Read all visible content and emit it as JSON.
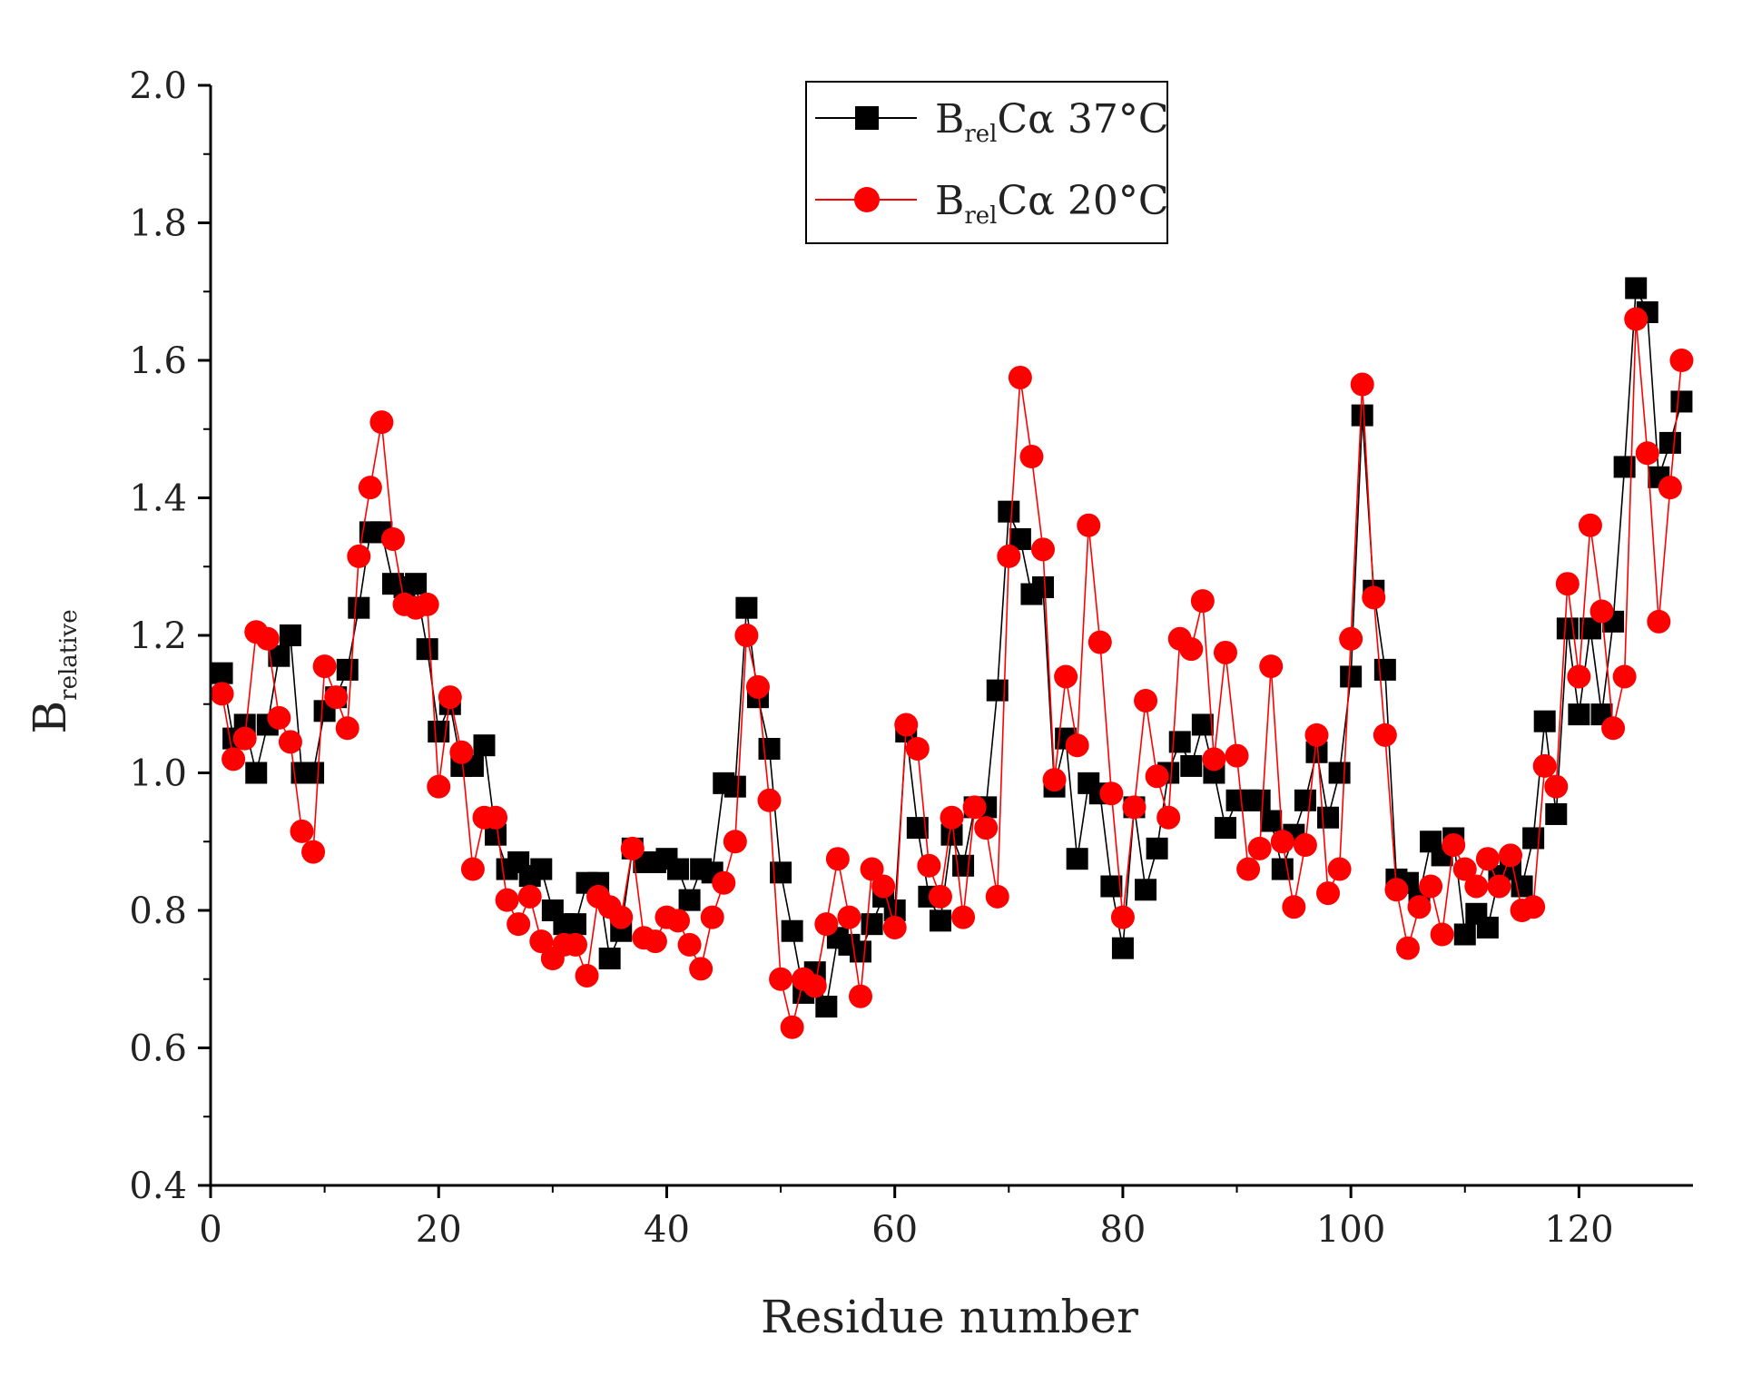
{
  "chart_data": {
    "type": "line",
    "xlabel": "Residue number",
    "ylabel": {
      "main": "B",
      "sub": "relative"
    },
    "xlim": [
      0,
      130
    ],
    "ylim": [
      0.4,
      2.0
    ],
    "xticks": [
      0,
      20,
      40,
      60,
      80,
      100,
      120
    ],
    "yticks": [
      0.4,
      0.6,
      0.8,
      1.0,
      1.2,
      1.4,
      1.6,
      1.8,
      2.0
    ],
    "xtick_labels": [
      "0",
      "20",
      "40",
      "60",
      "80",
      "100",
      "120"
    ],
    "ytick_labels": [
      "0.4",
      "0.6",
      "0.8",
      "1.0",
      "1.2",
      "1.4",
      "1.6",
      "1.8",
      "2.0"
    ],
    "legend_position": "top-center",
    "series": [
      {
        "name": "B_rel Cα 37°C",
        "label_main": "B",
        "label_sub": "rel",
        "label_rest": "Cα 37°C",
        "color": "#000000",
        "marker": "square",
        "x": [
          1,
          2,
          3,
          4,
          5,
          6,
          7,
          8,
          9,
          10,
          11,
          12,
          13,
          14,
          15,
          16,
          17,
          18,
          19,
          20,
          21,
          22,
          23,
          24,
          25,
          26,
          27,
          28,
          29,
          30,
          31,
          32,
          33,
          34,
          35,
          36,
          37,
          38,
          39,
          40,
          41,
          42,
          43,
          44,
          45,
          46,
          47,
          48,
          49,
          50,
          51,
          52,
          53,
          54,
          55,
          56,
          57,
          58,
          59,
          60,
          61,
          62,
          63,
          64,
          65,
          66,
          67,
          68,
          69,
          70,
          71,
          72,
          73,
          74,
          75,
          76,
          77,
          78,
          79,
          80,
          81,
          82,
          83,
          84,
          85,
          86,
          87,
          88,
          89,
          90,
          91,
          92,
          93,
          94,
          95,
          96,
          97,
          98,
          99,
          100,
          101,
          102,
          103,
          104,
          105,
          106,
          107,
          108,
          109,
          110,
          111,
          112,
          113,
          114,
          115,
          116,
          117,
          118,
          119,
          120,
          121,
          122,
          123,
          124,
          125,
          126,
          127,
          128,
          129
        ],
        "y": [
          1.145,
          1.05,
          1.07,
          1.0,
          1.07,
          1.17,
          1.2,
          1.0,
          1.0,
          1.09,
          1.11,
          1.15,
          1.24,
          1.35,
          1.35,
          1.275,
          1.27,
          1.275,
          1.18,
          1.06,
          1.1,
          1.01,
          1.01,
          1.04,
          0.91,
          0.86,
          0.87,
          0.85,
          0.86,
          0.8,
          0.78,
          0.78,
          0.84,
          0.84,
          0.73,
          0.77,
          0.89,
          0.87,
          0.87,
          0.875,
          0.86,
          0.815,
          0.86,
          0.855,
          0.985,
          0.98,
          1.24,
          1.11,
          1.035,
          0.855,
          0.77,
          0.68,
          0.71,
          0.66,
          0.76,
          0.75,
          0.74,
          0.78,
          0.82,
          0.8,
          1.06,
          0.92,
          0.82,
          0.785,
          0.91,
          0.865,
          0.95,
          0.95,
          1.12,
          1.38,
          1.34,
          1.26,
          1.27,
          0.98,
          1.05,
          0.875,
          0.985,
          0.97,
          0.835,
          0.745,
          0.95,
          0.83,
          0.89,
          1.0,
          1.045,
          1.01,
          1.07,
          1.0,
          0.92,
          0.96,
          0.96,
          0.96,
          0.93,
          0.86,
          0.91,
          0.96,
          1.03,
          0.935,
          1.0,
          1.14,
          1.52,
          1.265,
          1.15,
          0.845,
          0.84,
          0.82,
          0.9,
          0.88,
          0.905,
          0.765,
          0.795,
          0.775,
          0.85,
          0.86,
          0.835,
          0.905,
          1.075,
          0.94,
          1.21,
          1.085,
          1.21,
          1.085,
          1.22,
          1.445,
          1.705,
          1.67,
          1.43,
          1.48,
          1.54
        ]
      },
      {
        "name": "B_rel Cα 20°C",
        "label_main": "B",
        "label_sub": "rel",
        "label_rest": "Cα 20°C",
        "color": "#ff0000",
        "marker": "circle",
        "x": [
          1,
          2,
          3,
          4,
          5,
          6,
          7,
          8,
          9,
          10,
          11,
          12,
          13,
          14,
          15,
          16,
          17,
          18,
          19,
          20,
          21,
          22,
          23,
          24,
          25,
          26,
          27,
          28,
          29,
          30,
          31,
          32,
          33,
          34,
          35,
          36,
          37,
          38,
          39,
          40,
          41,
          42,
          43,
          44,
          45,
          46,
          47,
          48,
          49,
          50,
          51,
          52,
          53,
          54,
          55,
          56,
          57,
          58,
          59,
          60,
          61,
          62,
          63,
          64,
          65,
          66,
          67,
          68,
          69,
          70,
          71,
          72,
          73,
          74,
          75,
          76,
          77,
          78,
          79,
          80,
          81,
          82,
          83,
          84,
          85,
          86,
          87,
          88,
          89,
          90,
          91,
          92,
          93,
          94,
          95,
          96,
          97,
          98,
          99,
          100,
          101,
          102,
          103,
          104,
          105,
          106,
          107,
          108,
          109,
          110,
          111,
          112,
          113,
          114,
          115,
          116,
          117,
          118,
          119,
          120,
          121,
          122,
          123,
          124,
          125,
          126,
          127,
          128,
          129
        ],
        "y": [
          1.115,
          1.02,
          1.05,
          1.205,
          1.195,
          1.08,
          1.045,
          0.915,
          0.885,
          1.155,
          1.11,
          1.065,
          1.315,
          1.415,
          1.51,
          1.34,
          1.245,
          1.24,
          1.245,
          0.98,
          1.11,
          1.03,
          0.86,
          0.935,
          0.935,
          0.815,
          0.78,
          0.82,
          0.755,
          0.73,
          0.75,
          0.75,
          0.705,
          0.82,
          0.805,
          0.79,
          0.89,
          0.76,
          0.755,
          0.79,
          0.785,
          0.75,
          0.715,
          0.79,
          0.84,
          0.9,
          1.2,
          1.125,
          0.96,
          0.7,
          0.63,
          0.7,
          0.69,
          0.78,
          0.875,
          0.79,
          0.675,
          0.86,
          0.835,
          0.775,
          1.07,
          1.035,
          0.865,
          0.82,
          0.935,
          0.79,
          0.95,
          0.92,
          0.82,
          1.315,
          1.575,
          1.46,
          1.325,
          0.99,
          1.14,
          1.04,
          1.36,
          1.19,
          0.97,
          0.79,
          0.95,
          1.105,
          0.995,
          0.935,
          1.195,
          1.18,
          1.25,
          1.02,
          1.175,
          1.025,
          0.86,
          0.89,
          1.155,
          0.9,
          0.805,
          0.895,
          1.055,
          0.825,
          0.86,
          1.195,
          1.565,
          1.255,
          1.055,
          0.83,
          0.745,
          0.805,
          0.835,
          0.765,
          0.895,
          0.86,
          0.835,
          0.875,
          0.835,
          0.88,
          0.8,
          0.805,
          1.01,
          0.98,
          1.275,
          1.14,
          1.36,
          1.235,
          1.065,
          1.14,
          1.66,
          1.465,
          1.22,
          1.415,
          1.6
        ]
      }
    ]
  }
}
